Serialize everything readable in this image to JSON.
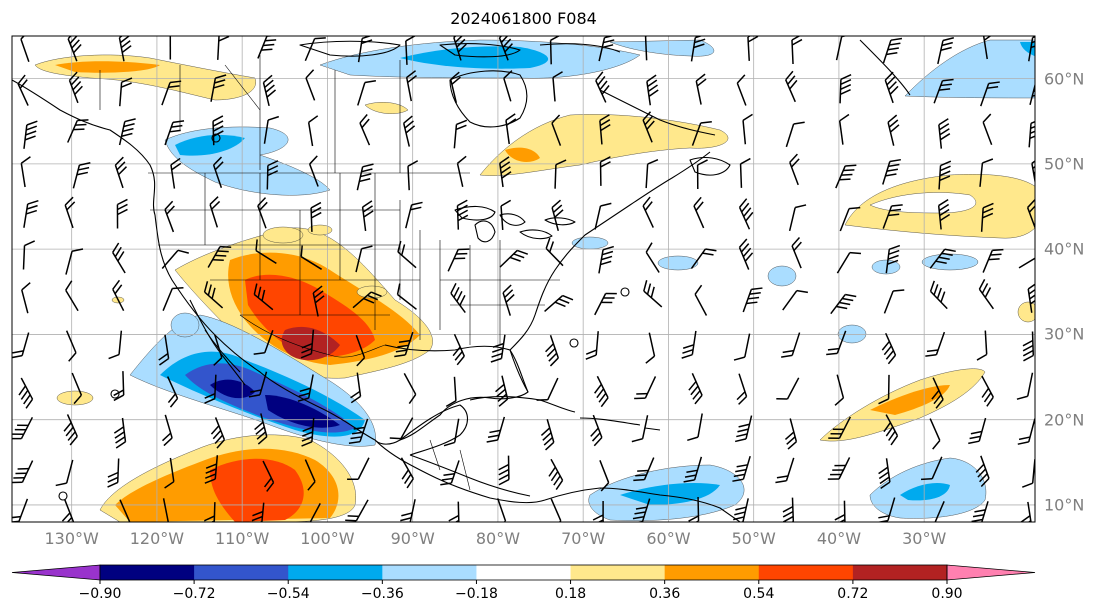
{
  "title": "2024061800 F084",
  "map": {
    "projection": "PlateCarree",
    "lon_range": [
      -137,
      -17
    ],
    "lat_range": [
      8,
      65
    ],
    "gridlines": true,
    "lon_labels": [
      "130°W",
      "120°W",
      "110°W",
      "100°W",
      "90°W",
      "80°W",
      "70°W",
      "60°W",
      "50°W",
      "40°W",
      "30°W"
    ],
    "lat_labels": [
      "60°N",
      "50°N",
      "40°N",
      "30°N",
      "20°N",
      "10°N"
    ]
  },
  "colorbar": {
    "orientation": "horizontal",
    "extend": "both",
    "tick_labels": [
      "−0.90",
      "−0.72",
      "−0.54",
      "−0.36",
      "−0.18",
      "0.18",
      "0.36",
      "0.54",
      "0.72",
      "0.90"
    ],
    "colors": [
      "#9933cc",
      "#000080",
      "#3355cc",
      "#00aaee",
      "#aaddff",
      "#ffffff",
      "#ffe88c",
      "#ff9c00",
      "#ff4500",
      "#b22222",
      "#ff80b0"
    ]
  },
  "feature_colors": {
    "coastline": "#000000",
    "gridline": "#b0b0b0",
    "wind_barb": "#000000"
  }
}
